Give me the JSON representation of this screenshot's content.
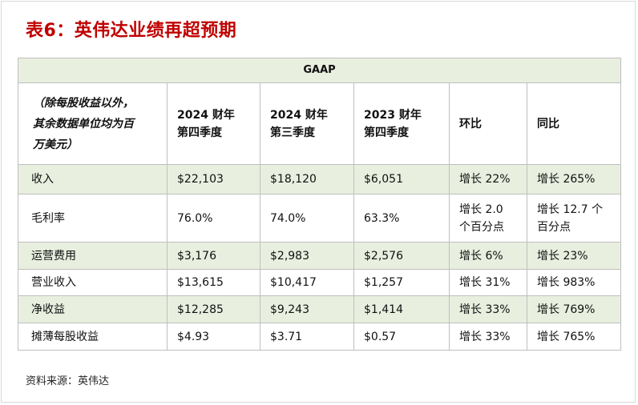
{
  "title": "表6：英伟达业绩再超预期",
  "table": {
    "section": "GAAP",
    "header_label": [
      "（除每股收益以外，",
      "其余数据单位均为百",
      "万美元）"
    ],
    "columns": [
      [
        "2024 财年",
        "第四季度"
      ],
      [
        "2024 财年",
        "第三季度"
      ],
      [
        "2023 财年",
        "第四季度"
      ],
      [
        "环比"
      ],
      [
        "同比"
      ]
    ],
    "rows": [
      {
        "label": "收入",
        "cells": [
          [
            "$22,103"
          ],
          [
            "$18,120"
          ],
          [
            "$6,051"
          ],
          [
            "增长 22%"
          ],
          [
            "增长 265%"
          ]
        ]
      },
      {
        "label": "毛利率",
        "cells": [
          [
            "76.0%"
          ],
          [
            "74.0%"
          ],
          [
            "63.3%"
          ],
          [
            "增长 2.0",
            "个百分点"
          ],
          [
            "增长 12.7 个",
            "百分点"
          ]
        ]
      },
      {
        "label": "运营费用",
        "cells": [
          [
            "$3,176"
          ],
          [
            "$2,983"
          ],
          [
            "$2,576"
          ],
          [
            "增长 6%"
          ],
          [
            "增长 23%"
          ]
        ]
      },
      {
        "label": "营业收入",
        "cells": [
          [
            "$13,615"
          ],
          [
            "$10,417"
          ],
          [
            "$1,257"
          ],
          [
            "增长 31%"
          ],
          [
            "增长 983%"
          ]
        ]
      },
      {
        "label": "净收益",
        "cells": [
          [
            "$12,285"
          ],
          [
            "$9,243"
          ],
          [
            "$1,414"
          ],
          [
            "增长 33%"
          ],
          [
            "增长 769%"
          ]
        ]
      },
      {
        "label": "摊薄每股收益",
        "cells": [
          [
            "$4.93"
          ],
          [
            "$3.71"
          ],
          [
            "$0.57"
          ],
          [
            "增长 33%"
          ],
          [
            "增长 765%"
          ]
        ]
      }
    ]
  },
  "source": "资料来源：英伟达",
  "colors": {
    "title": "#c00000",
    "band": "#e8efdf",
    "border": "#bfbfbf"
  }
}
